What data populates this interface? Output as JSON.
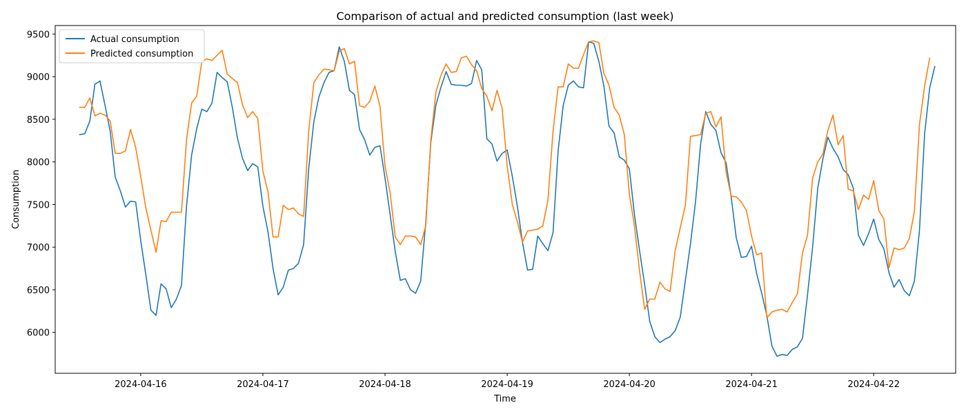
{
  "chart_data": {
    "type": "line",
    "title": "Comparison of actual and predicted consumption (last week)",
    "xlabel": "Time",
    "ylabel": "Consumption",
    "x_start": "2024-04-15 12:00",
    "x_step_hours": 1,
    "xlim": [
      "2024-04-15 07:12",
      "2024-04-22 16:06"
    ],
    "ylim": [
      5520,
      9600
    ],
    "x_ticks": [
      "2024-04-16",
      "2024-04-17",
      "2024-04-18",
      "2024-04-19",
      "2024-04-20",
      "2024-04-21",
      "2024-04-22"
    ],
    "y_ticks": [
      6000,
      6500,
      7000,
      7500,
      8000,
      8500,
      9000,
      9500
    ],
    "grid": false,
    "legend_position": "top-left",
    "series": [
      {
        "name": "Actual consumption",
        "color": "#1f77b4",
        "values": [
          8320,
          8330,
          8480,
          8910,
          8950,
          8660,
          8360,
          7820,
          7660,
          7470,
          7540,
          7530,
          7080,
          6680,
          6260,
          6200,
          6570,
          6510,
          6290,
          6390,
          6550,
          7480,
          8080,
          8390,
          8620,
          8590,
          8690,
          9050,
          8990,
          8940,
          8640,
          8280,
          8040,
          7900,
          7980,
          7940,
          7480,
          7180,
          6750,
          6440,
          6530,
          6730,
          6750,
          6810,
          7030,
          7920,
          8470,
          8760,
          8930,
          9050,
          9070,
          9350,
          9180,
          8840,
          8790,
          8380,
          8260,
          8080,
          8170,
          8190,
          7810,
          7380,
          6950,
          6610,
          6630,
          6500,
          6460,
          6600,
          7290,
          8230,
          8670,
          8880,
          9060,
          8910,
          8900,
          8900,
          8890,
          8920,
          9190,
          9080,
          8270,
          8210,
          8010,
          8100,
          8140,
          7830,
          7480,
          7060,
          6730,
          6740,
          7130,
          7040,
          6960,
          7170,
          8130,
          8660,
          8900,
          8950,
          8880,
          8870,
          9410,
          9390,
          9180,
          8890,
          8420,
          8340,
          8060,
          8020,
          7920,
          7380,
          6960,
          6560,
          6130,
          5950,
          5880,
          5920,
          5950,
          6020,
          6180,
          6610,
          7040,
          7530,
          8210,
          8590,
          8440,
          8370,
          8110,
          7990,
          7590,
          7110,
          6880,
          6890,
          7010,
          6690,
          6460,
          6200,
          5840,
          5720,
          5740,
          5730,
          5800,
          5830,
          5930,
          6440,
          7000,
          7690,
          8030,
          8290,
          8160,
          8060,
          7910,
          7850,
          7690,
          7140,
          7020,
          7160,
          7330,
          7090,
          6980,
          6700,
          6530,
          6620,
          6490,
          6430,
          6600,
          7200,
          8330,
          8870,
          9120
        ]
      },
      {
        "name": "Predicted consumption",
        "color": "#ff7f0e",
        "values": [
          8640,
          8640,
          8750,
          8540,
          8570,
          8550,
          8480,
          8100,
          8100,
          8130,
          8380,
          8170,
          7830,
          7460,
          7200,
          6940,
          7310,
          7300,
          7410,
          7410,
          7410,
          8260,
          8690,
          8770,
          9180,
          9210,
          9190,
          9250,
          9310,
          9030,
          8980,
          8930,
          8670,
          8520,
          8590,
          8510,
          7890,
          7650,
          7120,
          7120,
          7490,
          7440,
          7460,
          7390,
          7360,
          8360,
          8930,
          9020,
          9090,
          9080,
          9070,
          9300,
          9330,
          9150,
          9180,
          8660,
          8640,
          8710,
          8890,
          8650,
          7950,
          7640,
          7120,
          7030,
          7130,
          7130,
          7120,
          7030,
          7250,
          8260,
          8820,
          9020,
          9150,
          9050,
          9060,
          9220,
          9240,
          9140,
          9070,
          8860,
          8770,
          8600,
          8840,
          8630,
          7950,
          7500,
          7300,
          7060,
          7190,
          7200,
          7210,
          7250,
          7550,
          8360,
          8880,
          8880,
          9150,
          9100,
          9100,
          9260,
          9410,
          9420,
          9400,
          9040,
          8900,
          8640,
          8550,
          8320,
          7620,
          7250,
          6720,
          6270,
          6390,
          6390,
          6590,
          6510,
          6480,
          6960,
          7230,
          7490,
          8300,
          8310,
          8320,
          8570,
          8590,
          8410,
          8530,
          7880,
          7600,
          7590,
          7530,
          7430,
          7130,
          6910,
          6930,
          6170,
          6240,
          6260,
          6270,
          6240,
          6350,
          6450,
          6930,
          7140,
          7810,
          8000,
          8090,
          8370,
          8550,
          8200,
          8310,
          7680,
          7660,
          7440,
          7610,
          7560,
          7780,
          7430,
          7330,
          6760,
          6990,
          6970,
          6990,
          7100,
          7420,
          8440,
          8890,
          9220
        ]
      }
    ]
  }
}
